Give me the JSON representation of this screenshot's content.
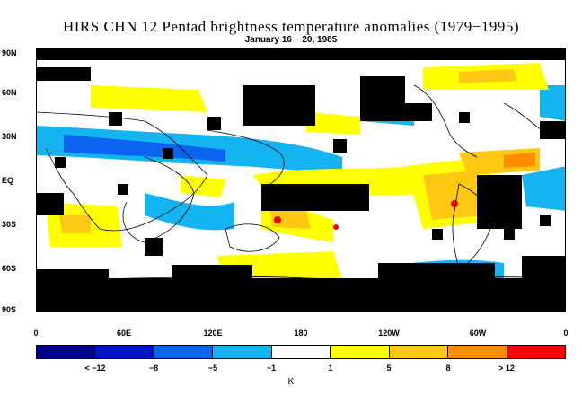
{
  "title": "HIRS CHN 12 Pentad brightness temperature anomalies (1979−1995)",
  "subtitle": "January 16 − 20, 1985",
  "map": {
    "lat_labels": [
      "90N",
      "60N",
      "30N",
      "EQ",
      "30S",
      "60S",
      "90S"
    ],
    "lon_labels": [
      "0",
      "60E",
      "120E",
      "180",
      "120W",
      "60W",
      "0"
    ],
    "missing_color": "#000000"
  },
  "colorbar": {
    "colors": [
      "#00008c",
      "#0014c8",
      "#0a64f0",
      "#14b4f0",
      "#ffffff",
      "#ffff00",
      "#ffc814",
      "#ff8c00",
      "#ff0000"
    ],
    "labels": [
      "< −12",
      "−8",
      "−5",
      "−1",
      "1",
      "5",
      "8",
      "> 12"
    ],
    "unit": "K"
  }
}
